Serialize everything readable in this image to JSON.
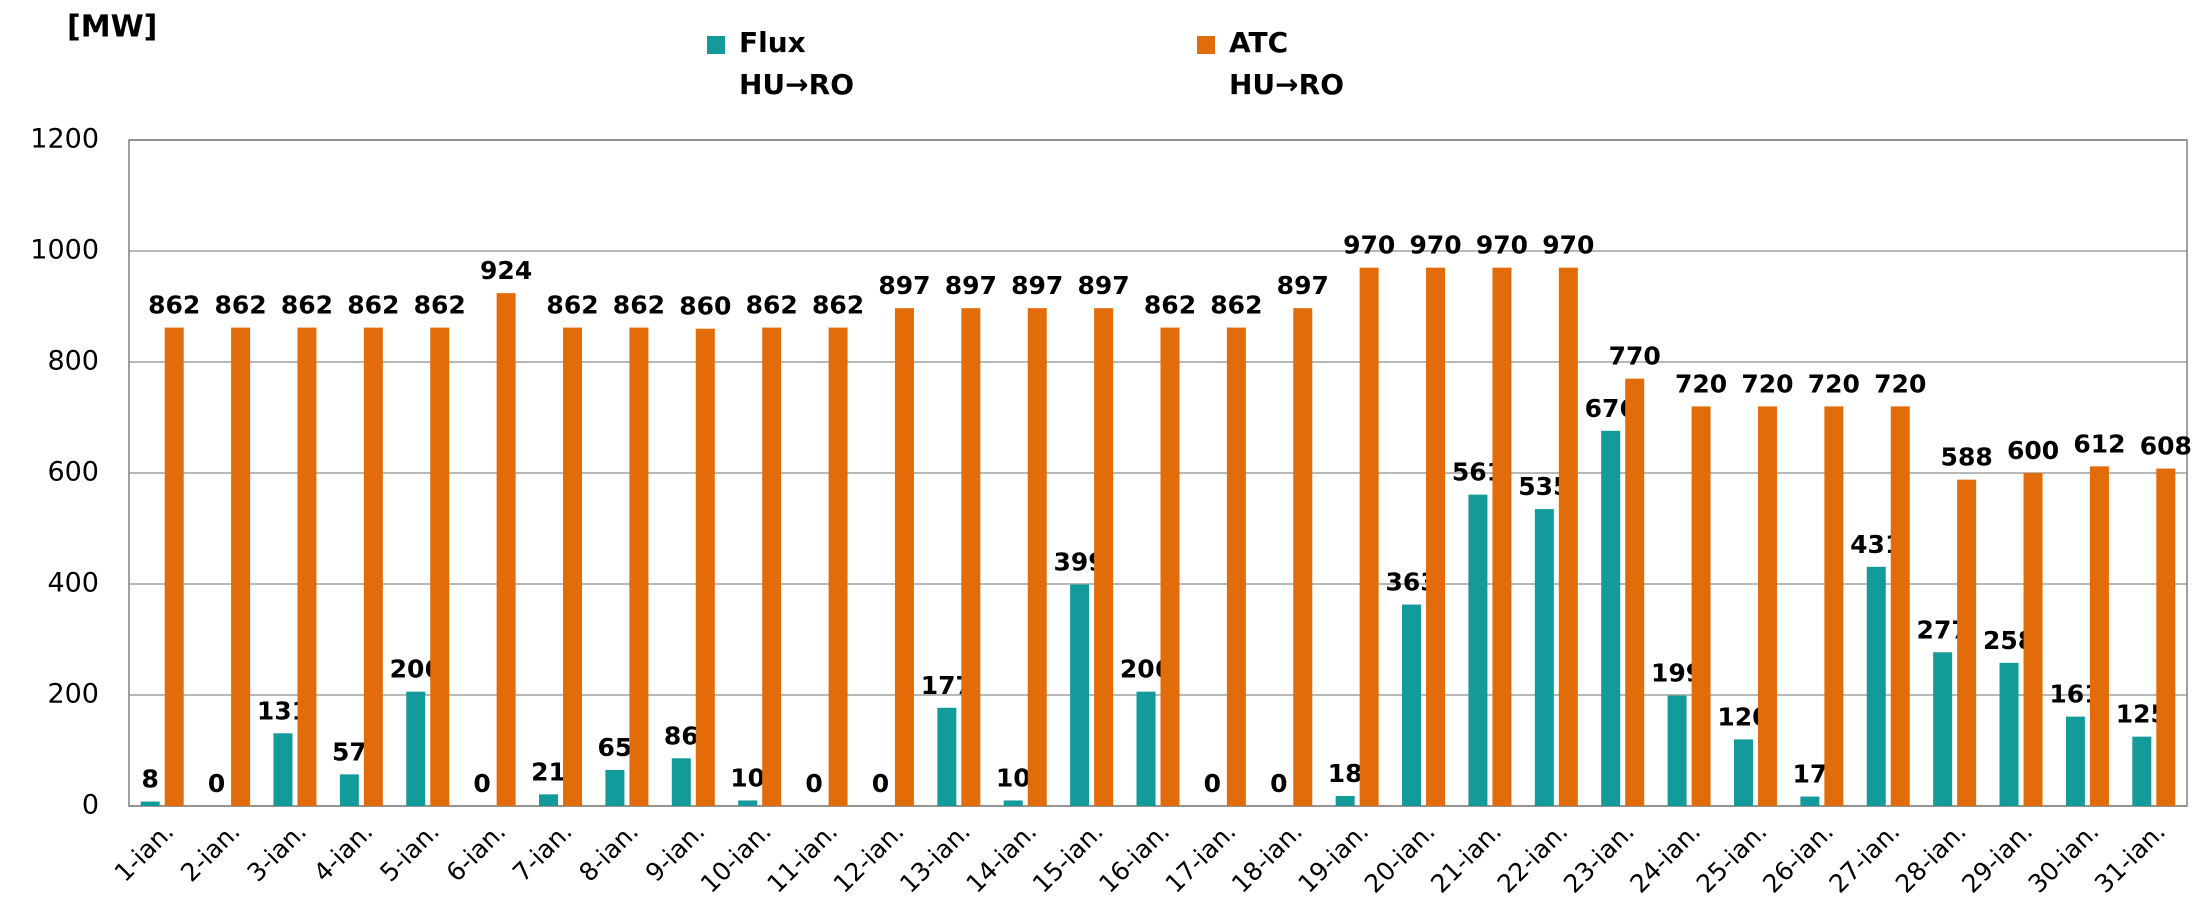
{
  "chart_data": {
    "type": "bar",
    "y_label": "[MW]",
    "categories": [
      "1-ian.",
      "2-ian.",
      "3-ian.",
      "4-ian.",
      "5-ian.",
      "6-ian.",
      "7-ian.",
      "8-ian.",
      "9-ian.",
      "10-ian.",
      "11-ian.",
      "12-ian.",
      "13-ian.",
      "14-ian.",
      "15-ian.",
      "16-ian.",
      "17-ian.",
      "18-ian.",
      "19-ian.",
      "20-ian.",
      "21-ian.",
      "22-ian.",
      "23-ian.",
      "24-ian.",
      "25-ian.",
      "26-ian.",
      "27-ian.",
      "28-ian.",
      "29-ian.",
      "30-ian.",
      "31-ian."
    ],
    "series": [
      {
        "name": "Flux\nHU→RO",
        "color": "#139b9b",
        "values": [
          8,
          0,
          131,
          57,
          206,
          0,
          21,
          65,
          86,
          10,
          0,
          0,
          177,
          10,
          399,
          206,
          0,
          0,
          18,
          363,
          561,
          535,
          676,
          199,
          120,
          17,
          431,
          277,
          258,
          161,
          125
        ]
      },
      {
        "name": "ATC\nHU→RO",
        "color": "#e36c0a",
        "values": [
          862,
          862,
          862,
          862,
          862,
          924,
          862,
          862,
          860,
          862,
          862,
          897,
          897,
          897,
          897,
          862,
          862,
          897,
          970,
          970,
          970,
          970,
          770,
          720,
          720,
          720,
          720,
          588,
          600,
          612,
          608
        ]
      }
    ],
    "ylim": [
      0,
      1200
    ],
    "yticks": [
      0,
      200,
      400,
      600,
      800,
      1000,
      1200
    ],
    "grid": true
  }
}
